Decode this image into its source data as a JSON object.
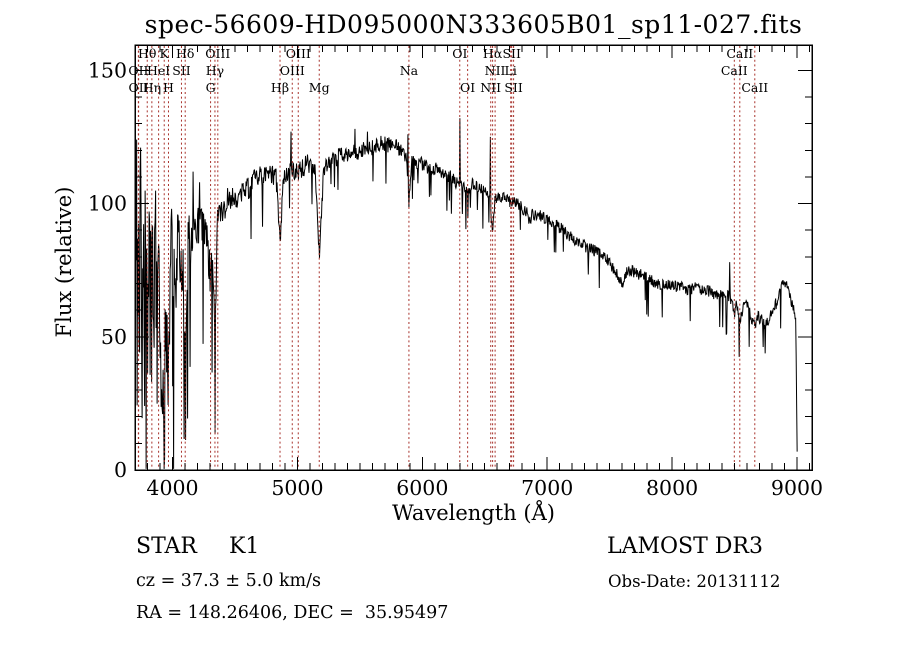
{
  "title": "spec-56609-HD095000N333605B01_sp11-027.fits",
  "info": {
    "class": "STAR",
    "subclass": "K1",
    "cz": "cz = 37.3 ± 5.0 km/s",
    "radec": "RA = 148.26406, DEC =  35.95497",
    "survey": "LAMOST DR3",
    "obs_date": "Obs-Date: 20131112"
  },
  "chart_data": {
    "type": "line",
    "title": "spec-56609-HD095000N333605B01_sp11-027.fits",
    "xlabel": "Wavelength (Å)",
    "ylabel": "Flux (relative)",
    "xlim": [
      3700,
      9120
    ],
    "ylim": [
      0,
      159.5
    ],
    "x_ticks": [
      4000,
      5000,
      6000,
      7000,
      8000,
      9000
    ],
    "y_ticks": [
      0,
      50,
      100,
      150
    ],
    "x_minor_step": 100,
    "y_minor_step": 10,
    "grid": false,
    "legend": "none",
    "line_color": "#000000",
    "marker_color": "#A8322C",
    "spectral_lines": [
      {
        "label": "Hθ",
        "wavelength": 3798,
        "row": 1
      },
      {
        "label": "K",
        "wavelength": 3934,
        "row": 1
      },
      {
        "label": "Hδ",
        "wavelength": 4102,
        "row": 1
      },
      {
        "label": "OIII",
        "wavelength": 4363,
        "row": 1
      },
      {
        "label": "OIII",
        "wavelength": 5007,
        "row": 1
      },
      {
        "label": "OI",
        "wavelength": 6300,
        "row": 1
      },
      {
        "label": "Hα",
        "wavelength": 6563,
        "row": 1
      },
      {
        "label": "SII",
        "wavelength": 6716,
        "row": 1
      },
      {
        "label": "CaII",
        "wavelength": 8542,
        "row": 1
      },
      {
        "label": "OII",
        "wavelength": 3727,
        "row": 2
      },
      {
        "label": "HeI",
        "wavelength": 3889,
        "row": 2
      },
      {
        "label": "SII",
        "wavelength": 4072,
        "row": 2
      },
      {
        "label": "Hγ",
        "wavelength": 4340,
        "row": 2
      },
      {
        "label": "OIII",
        "wavelength": 4959,
        "row": 2
      },
      {
        "label": "Na",
        "wavelength": 5893,
        "row": 2
      },
      {
        "label": "NII",
        "wavelength": 6583,
        "row": 2
      },
      {
        "label": "Li",
        "wavelength": 6708,
        "row": 2
      },
      {
        "label": "CaII",
        "wavelength": 8498,
        "row": 2
      },
      {
        "label": "OII",
        "wavelength": 3729,
        "row": 3
      },
      {
        "label": "Hη",
        "wavelength": 3835,
        "row": 3
      },
      {
        "label": "H",
        "wavelength": 3968,
        "row": 3
      },
      {
        "label": "G",
        "wavelength": 4305,
        "row": 3
      },
      {
        "label": "Hβ",
        "wavelength": 4861,
        "row": 3
      },
      {
        "label": "Mg",
        "wavelength": 5175,
        "row": 3
      },
      {
        "label": "OI",
        "wavelength": 6363,
        "row": 3
      },
      {
        "label": "NII",
        "wavelength": 6548,
        "row": 3
      },
      {
        "label": "SII",
        "wavelength": 6731,
        "row": 3
      },
      {
        "label": "CaII",
        "wavelength": 8662,
        "row": 3
      }
    ],
    "continuum_points": [
      [
        3705,
        60
      ],
      [
        3712,
        95
      ],
      [
        3720,
        40
      ],
      [
        3727,
        70
      ],
      [
        3735,
        25
      ],
      [
        3742,
        100
      ],
      [
        3750,
        65
      ],
      [
        3758,
        30
      ],
      [
        3766,
        95
      ],
      [
        3775,
        55
      ],
      [
        3782,
        85
      ],
      [
        3790,
        60
      ],
      [
        3798,
        42
      ],
      [
        3808,
        80
      ],
      [
        3818,
        65
      ],
      [
        3827,
        75
      ],
      [
        3835,
        55
      ],
      [
        3845,
        88
      ],
      [
        3855,
        60
      ],
      [
        3865,
        90
      ],
      [
        3875,
        45
      ],
      [
        3885,
        75
      ],
      [
        3895,
        60
      ],
      [
        3910,
        45
      ],
      [
        3920,
        30
      ],
      [
        3933,
        12
      ],
      [
        3944,
        50
      ],
      [
        3955,
        60
      ],
      [
        3968,
        25
      ],
      [
        3980,
        60
      ],
      [
        3990,
        85
      ],
      [
        4000,
        80
      ],
      [
        4010,
        72
      ],
      [
        4026,
        65
      ],
      [
        4040,
        85
      ],
      [
        4055,
        88
      ],
      [
        4072,
        68
      ],
      [
        4085,
        78
      ],
      [
        4102,
        45
      ],
      [
        4120,
        82
      ],
      [
        4135,
        88
      ],
      [
        4150,
        85
      ],
      [
        4165,
        90
      ],
      [
        4180,
        88
      ],
      [
        4200,
        92
      ],
      [
        4220,
        90
      ],
      [
        4240,
        92
      ],
      [
        4260,
        88
      ],
      [
        4280,
        84
      ],
      [
        4305,
        72
      ],
      [
        4322,
        80
      ],
      [
        4340,
        50
      ],
      [
        4360,
        92
      ],
      [
        4380,
        95
      ],
      [
        4400,
        97
      ],
      [
        4430,
        100
      ],
      [
        4460,
        102
      ],
      [
        4490,
        101
      ],
      [
        4520,
        103
      ],
      [
        4550,
        105
      ],
      [
        4580,
        104
      ],
      [
        4610,
        106
      ],
      [
        4640,
        108
      ],
      [
        4670,
        109
      ],
      [
        4700,
        110
      ],
      [
        4730,
        110
      ],
      [
        4760,
        111
      ],
      [
        4790,
        111
      ],
      [
        4830,
        110
      ],
      [
        4861,
        86
      ],
      [
        4890,
        110
      ],
      [
        4920,
        112
      ],
      [
        4959,
        112
      ],
      [
        5007,
        112
      ],
      [
        5040,
        113
      ],
      [
        5075,
        115
      ],
      [
        5110,
        115
      ],
      [
        5140,
        114
      ],
      [
        5175,
        80
      ],
      [
        5210,
        113
      ],
      [
        5245,
        115
      ],
      [
        5280,
        116
      ],
      [
        5315,
        117
      ],
      [
        5350,
        119
      ],
      [
        5385,
        118
      ],
      [
        5420,
        119
      ],
      [
        5455,
        120
      ],
      [
        5490,
        119
      ],
      [
        5525,
        120
      ],
      [
        5560,
        121
      ],
      [
        5600,
        121
      ],
      [
        5640,
        122
      ],
      [
        5680,
        123
      ],
      [
        5720,
        122
      ],
      [
        5760,
        122
      ],
      [
        5800,
        121
      ],
      [
        5835,
        120
      ],
      [
        5870,
        118
      ],
      [
        5893,
        100
      ],
      [
        5915,
        116
      ],
      [
        5950,
        116
      ],
      [
        5990,
        115
      ],
      [
        6030,
        114
      ],
      [
        6070,
        113
      ],
      [
        6110,
        113
      ],
      [
        6150,
        112
      ],
      [
        6190,
        111
      ],
      [
        6230,
        110
      ],
      [
        6270,
        108
      ],
      [
        6300,
        106
      ],
      [
        6330,
        107
      ],
      [
        6363,
        105
      ],
      [
        6395,
        107
      ],
      [
        6430,
        107
      ],
      [
        6465,
        106
      ],
      [
        6500,
        105
      ],
      [
        6540,
        103
      ],
      [
        6563,
        87
      ],
      [
        6580,
        102
      ],
      [
        6610,
        103
      ],
      [
        6645,
        102
      ],
      [
        6680,
        102
      ],
      [
        6715,
        100
      ],
      [
        6750,
        101
      ],
      [
        6790,
        99
      ],
      [
        6830,
        97
      ],
      [
        6860,
        94
      ],
      [
        6885,
        96
      ],
      [
        6920,
        96
      ],
      [
        6960,
        95
      ],
      [
        7000,
        94
      ],
      [
        7050,
        92
      ],
      [
        7100,
        91
      ],
      [
        7150,
        89
      ],
      [
        7200,
        87
      ],
      [
        7250,
        86
      ],
      [
        7300,
        84
      ],
      [
        7350,
        83
      ],
      [
        7400,
        82
      ],
      [
        7450,
        80
      ],
      [
        7500,
        78
      ],
      [
        7540,
        75
      ],
      [
        7580,
        71
      ],
      [
        7605,
        70
      ],
      [
        7630,
        74
      ],
      [
        7670,
        75
      ],
      [
        7710,
        74
      ],
      [
        7750,
        73
      ],
      [
        7800,
        72
      ],
      [
        7850,
        71
      ],
      [
        7900,
        70
      ],
      [
        7950,
        70
      ],
      [
        8000,
        69
      ],
      [
        8050,
        69
      ],
      [
        8100,
        68
      ],
      [
        8150,
        68
      ],
      [
        8200,
        69
      ],
      [
        8250,
        67
      ],
      [
        8300,
        67
      ],
      [
        8350,
        66
      ],
      [
        8400,
        66
      ],
      [
        8450,
        65
      ],
      [
        8480,
        64
      ],
      [
        8498,
        57
      ],
      [
        8515,
        62
      ],
      [
        8542,
        56
      ],
      [
        8570,
        61
      ],
      [
        8600,
        62
      ],
      [
        8630,
        58
      ],
      [
        8662,
        54
      ],
      [
        8690,
        58
      ],
      [
        8720,
        56
      ],
      [
        8750,
        54
      ],
      [
        8780,
        57
      ],
      [
        8820,
        61
      ],
      [
        8860,
        66
      ],
      [
        8895,
        71
      ],
      [
        8925,
        69
      ],
      [
        8955,
        63
      ],
      [
        8980,
        60
      ],
      [
        8990,
        56
      ],
      [
        8996,
        30
      ],
      [
        9002,
        4
      ]
    ],
    "noise_profile": [
      [
        3700,
        42
      ],
      [
        3750,
        44
      ],
      [
        3800,
        36
      ],
      [
        3850,
        30
      ],
      [
        3900,
        24
      ],
      [
        3950,
        22
      ],
      [
        4000,
        15
      ],
      [
        4050,
        12
      ],
      [
        4100,
        10
      ],
      [
        4150,
        9
      ],
      [
        4200,
        8
      ],
      [
        4300,
        7
      ],
      [
        4400,
        5.5
      ],
      [
        4500,
        4.5
      ],
      [
        4700,
        4
      ],
      [
        4900,
        3.5
      ],
      [
        5100,
        3.5
      ],
      [
        5300,
        3
      ],
      [
        5600,
        3
      ],
      [
        5900,
        2.7
      ],
      [
        6200,
        2.5
      ],
      [
        6500,
        2.3
      ],
      [
        6900,
        2.3
      ],
      [
        7300,
        2.2
      ],
      [
        7700,
        2.4
      ],
      [
        8100,
        2.2
      ],
      [
        8500,
        2.2
      ],
      [
        8800,
        2.4
      ],
      [
        9000,
        1.5
      ]
    ],
    "spikes": [
      [
        3712,
        124
      ],
      [
        3745,
        121
      ],
      [
        4165,
        112
      ],
      [
        4215,
        108
      ],
      [
        4950,
        127
      ],
      [
        5460,
        128
      ],
      [
        5560,
        127
      ],
      [
        5885,
        126
      ],
      [
        6300,
        132
      ],
      [
        6545,
        125
      ],
      [
        8460,
        78
      ]
    ],
    "noise_seed": 12345,
    "sample_step_angstrom": 4
  }
}
